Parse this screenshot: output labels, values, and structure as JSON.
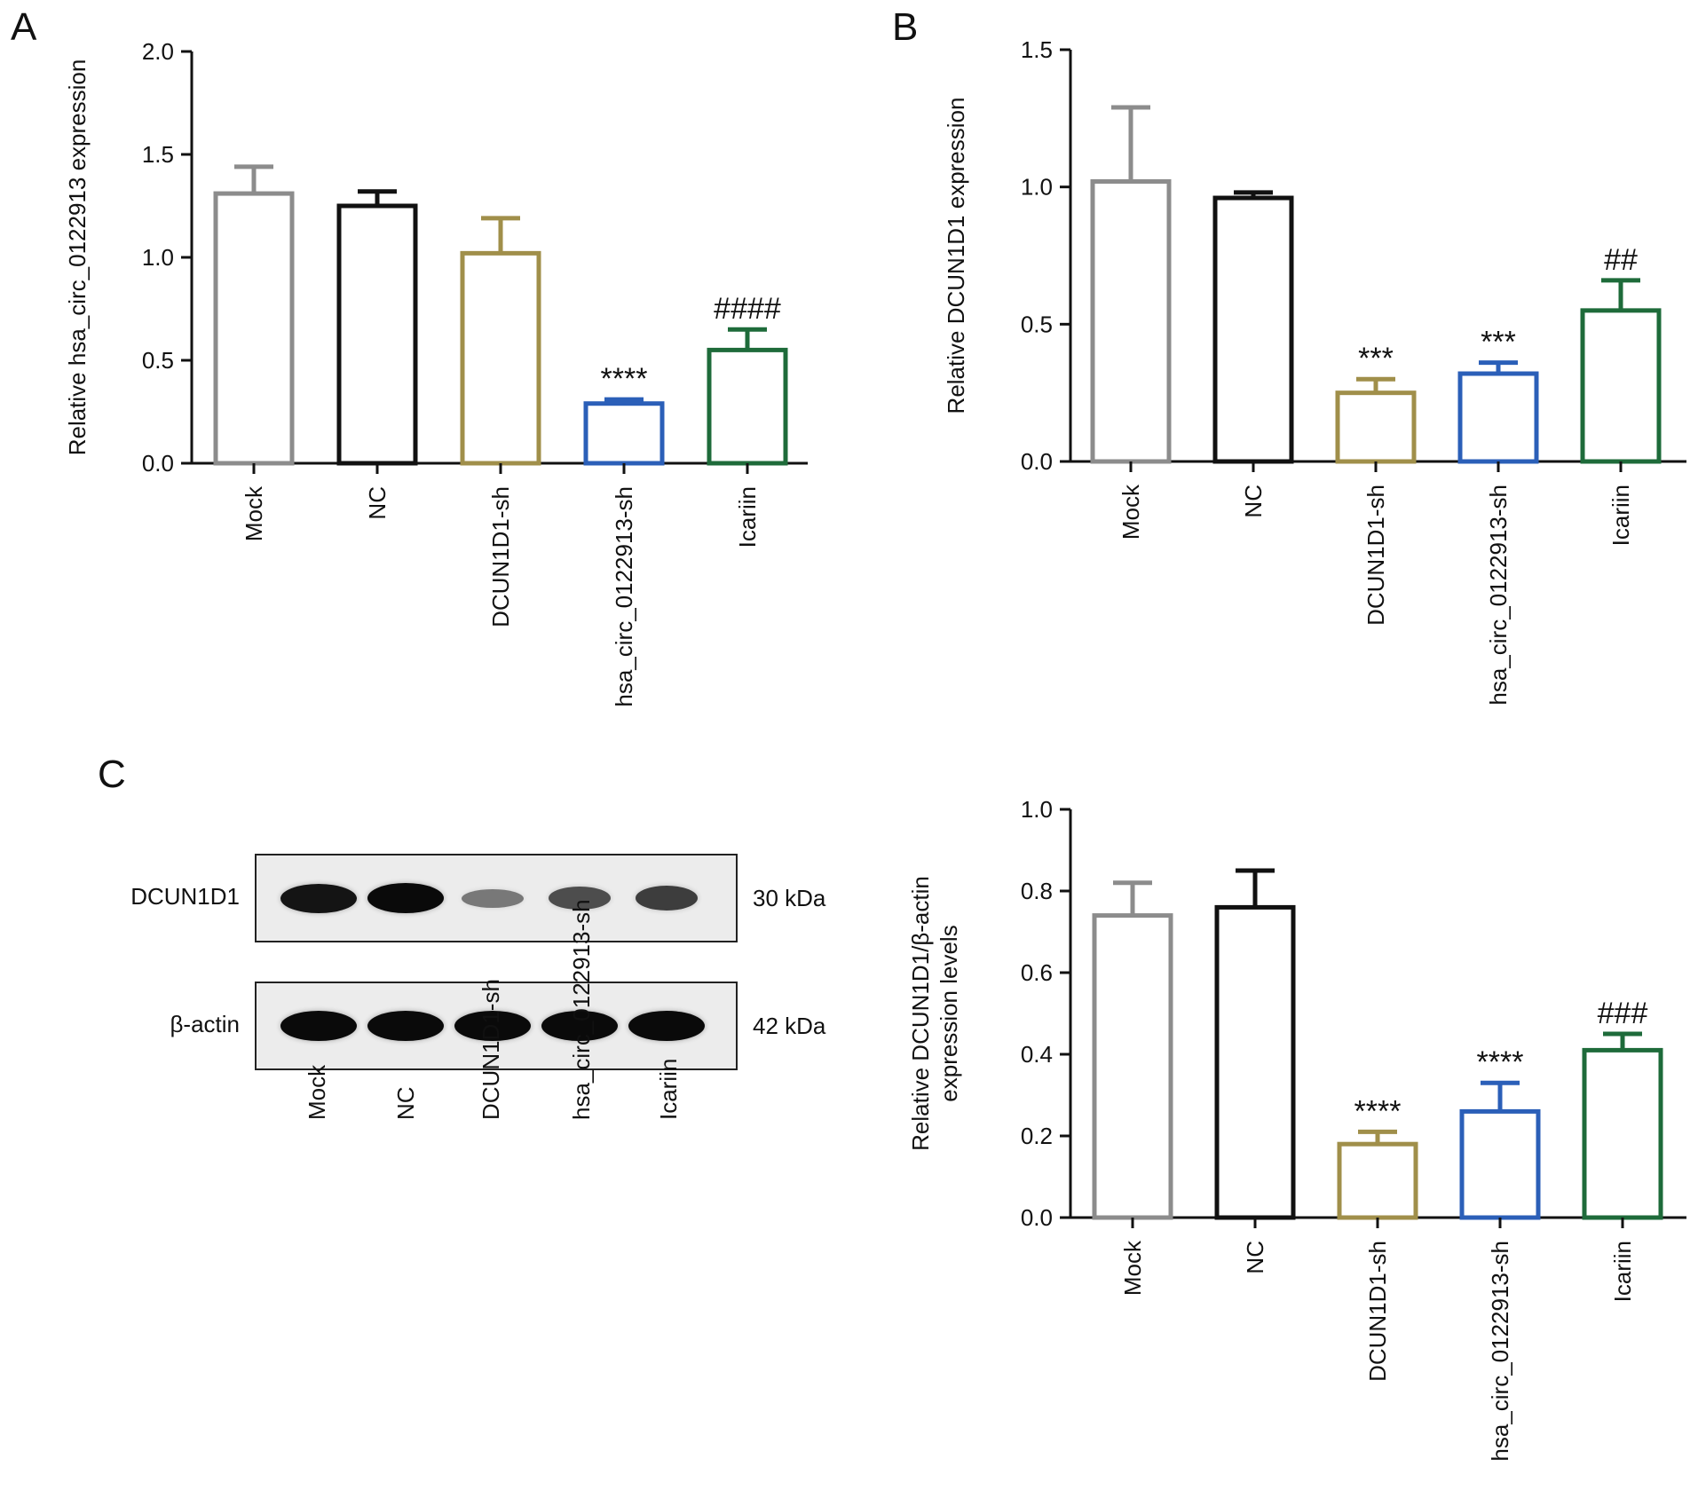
{
  "panels": {
    "A": "A",
    "B": "B",
    "C": "C"
  },
  "chart_data": [
    {
      "id": "A",
      "type": "bar",
      "categories": [
        "Mock",
        "NC",
        "DCUN1D1-sh",
        "hsa_circ_0122913-sh",
        "Icariin"
      ],
      "values": [
        1.31,
        1.25,
        1.02,
        0.29,
        0.55
      ],
      "errors": [
        0.13,
        0.07,
        0.17,
        0.02,
        0.1
      ],
      "colors": [
        "#8c8c8c",
        "#111111",
        "#a08f4a",
        "#2b5fb8",
        "#1e6b3a"
      ],
      "annotations": [
        "",
        "",
        "",
        "****",
        "####"
      ],
      "ylabel": "Relative hsa_circ_0122913 expression",
      "ylim": [
        0,
        2.0
      ],
      "yticks": [
        "0.0",
        "0.5",
        "1.0",
        "1.5",
        "2.0"
      ]
    },
    {
      "id": "B",
      "type": "bar",
      "categories": [
        "Mock",
        "NC",
        "DCUN1D1-sh",
        "hsa_circ_0122913-sh",
        "Icariin"
      ],
      "values": [
        1.02,
        0.96,
        0.25,
        0.32,
        0.55
      ],
      "errors": [
        0.27,
        0.02,
        0.05,
        0.04,
        0.11
      ],
      "colors": [
        "#8c8c8c",
        "#111111",
        "#a08f4a",
        "#2b5fb8",
        "#1e6b3a"
      ],
      "annotations": [
        "",
        "",
        "***",
        "***",
        "##"
      ],
      "ylabel": "Relative DCUN1D1 expression",
      "ylim": [
        0,
        1.5
      ],
      "yticks": [
        "0.0",
        "0.5",
        "1.0",
        "1.5"
      ]
    },
    {
      "id": "C",
      "type": "bar",
      "categories": [
        "Mock",
        "NC",
        "DCUN1D1-sh",
        "hsa_circ_0122913-sh",
        "Icariin"
      ],
      "values": [
        0.74,
        0.76,
        0.18,
        0.26,
        0.41
      ],
      "errors": [
        0.08,
        0.09,
        0.03,
        0.07,
        0.04
      ],
      "colors": [
        "#8c8c8c",
        "#111111",
        "#a08f4a",
        "#2b5fb8",
        "#1e6b3a"
      ],
      "annotations": [
        "",
        "",
        "****",
        "****",
        "###"
      ],
      "ylabel": [
        "Relative DCUN1D1/β-actin",
        "expression levels"
      ],
      "ylim": [
        0,
        1.0
      ],
      "yticks": [
        "0.0",
        "0.2",
        "0.4",
        "0.6",
        "0.8",
        "1.0"
      ]
    }
  ],
  "blot": {
    "rows": [
      {
        "label": "DCUN1D1",
        "kda": "30 kDa",
        "intensity": [
          0.95,
          1.0,
          0.35,
          0.6,
          0.7
        ]
      },
      {
        "label": "β-actin",
        "kda": "42 kDa",
        "intensity": [
          1.0,
          1.0,
          1.0,
          1.0,
          1.0
        ]
      }
    ],
    "lanes": [
      "Mock",
      "NC",
      "DCUN1D1-sh",
      "hsa_circ_0122913-sh",
      "Icariin"
    ]
  }
}
